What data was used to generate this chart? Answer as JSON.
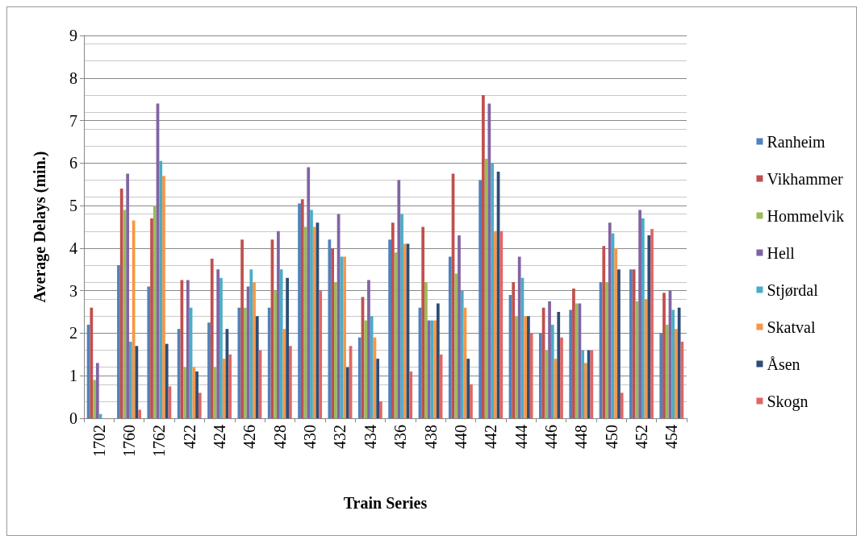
{
  "chart_data": {
    "type": "bar",
    "xlabel": "Train Series",
    "ylabel": "Average Delays (min.)",
    "categories": [
      "1702",
      "1760",
      "1762",
      "422",
      "424",
      "426",
      "428",
      "430",
      "432",
      "434",
      "436",
      "438",
      "440",
      "442",
      "444",
      "446",
      "448",
      "450",
      "452",
      "454"
    ],
    "ylim": [
      0,
      9
    ],
    "yticks": [
      0,
      1,
      2,
      3,
      4,
      5,
      6,
      7,
      8,
      9
    ],
    "grid": "y",
    "legend": "right",
    "series": [
      {
        "name": "Ranheim",
        "color": "#4f81bd",
        "values": [
          2.2,
          3.6,
          3.1,
          2.1,
          2.25,
          2.6,
          2.6,
          5.05,
          4.2,
          1.9,
          4.2,
          2.6,
          3.8,
          5.6,
          2.9,
          2.0,
          2.55,
          3.2,
          3.5,
          2.0
        ]
      },
      {
        "name": "Vikhammer",
        "color": "#c0504d",
        "values": [
          2.6,
          5.4,
          4.7,
          3.25,
          3.75,
          4.2,
          4.2,
          5.15,
          4.0,
          2.85,
          4.6,
          4.5,
          5.75,
          7.6,
          3.2,
          2.6,
          3.05,
          4.05,
          3.5,
          2.95
        ]
      },
      {
        "name": "Hommelvik",
        "color": "#9bbb59",
        "values": [
          0.9,
          4.9,
          5.0,
          1.2,
          1.2,
          2.6,
          3.0,
          4.5,
          3.2,
          2.3,
          3.9,
          3.2,
          3.4,
          6.1,
          2.4,
          1.6,
          2.7,
          3.2,
          2.75,
          2.2
        ]
      },
      {
        "name": "Hell",
        "color": "#8064a2",
        "values": [
          1.3,
          5.75,
          7.4,
          3.25,
          3.5,
          3.1,
          4.4,
          5.9,
          4.8,
          3.25,
          5.6,
          2.3,
          4.3,
          7.4,
          3.8,
          2.75,
          2.7,
          4.6,
          4.9,
          3.0
        ]
      },
      {
        "name": "Stjørdal",
        "color": "#4bacc6",
        "values": [
          0.1,
          1.8,
          6.05,
          2.6,
          3.3,
          3.5,
          3.5,
          4.9,
          3.8,
          2.4,
          4.8,
          2.3,
          3.0,
          6.0,
          3.3,
          2.2,
          1.6,
          4.35,
          4.7,
          2.55
        ]
      },
      {
        "name": "Skatval",
        "color": "#f79646",
        "values": [
          0,
          4.65,
          5.7,
          1.2,
          1.4,
          3.2,
          2.1,
          4.5,
          3.8,
          1.9,
          4.1,
          2.3,
          2.6,
          4.4,
          2.4,
          1.4,
          1.3,
          4.0,
          2.8,
          2.1
        ]
      },
      {
        "name": "Åsen",
        "color": "#2c4d75",
        "values": [
          0,
          1.7,
          1.75,
          1.1,
          2.1,
          2.4,
          3.3,
          4.6,
          1.2,
          1.4,
          4.1,
          2.7,
          1.4,
          5.8,
          2.4,
          2.5,
          1.6,
          3.5,
          4.3,
          2.6
        ]
      },
      {
        "name": "Skogn",
        "color": "#e06666",
        "values": [
          0,
          0.2,
          0.75,
          0.6,
          1.5,
          1.6,
          1.7,
          3.0,
          1.7,
          0.4,
          1.1,
          1.5,
          0.8,
          4.4,
          2.0,
          1.9,
          1.6,
          0.6,
          4.45,
          1.8
        ]
      }
    ]
  }
}
